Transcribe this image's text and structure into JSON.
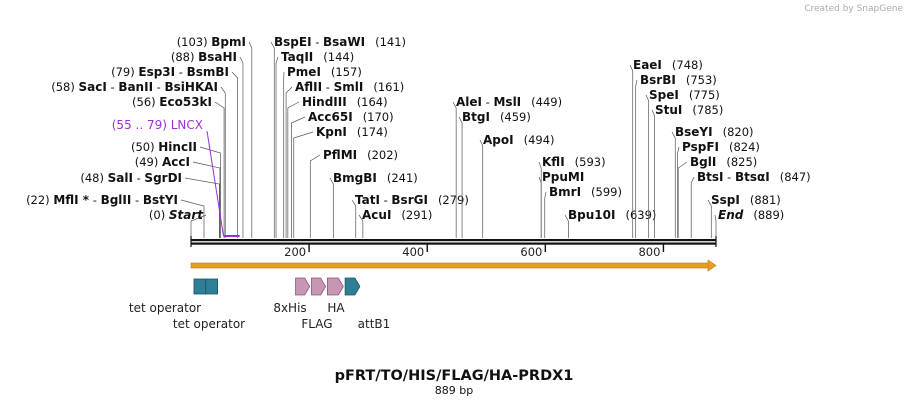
{
  "credit": "Created by SnapGene",
  "title": "pFRT/TO/HIS/FLAG/HA-PRDX1",
  "subtitle": "889 bp",
  "sequence_length": 889,
  "scale_ticks": [
    {
      "value": 200,
      "label": "200"
    },
    {
      "value": 400,
      "label": "400"
    },
    {
      "value": 600,
      "label": "600"
    },
    {
      "value": 800,
      "label": "800"
    }
  ],
  "enzyme_sites": [
    {
      "cut": 0,
      "parts": [
        {
          "t": "(0)",
          "b": false
        },
        {
          "t": "Start",
          "b": true,
          "i": true
        }
      ]
    },
    {
      "cut": 22,
      "parts": [
        {
          "t": "(22)",
          "b": false
        },
        {
          "t": "MflI *",
          "b": true
        },
        {
          "t": " - ",
          "b": false
        },
        {
          "t": "BglII",
          "b": true
        },
        {
          "t": "  - ",
          "b": false
        },
        {
          "t": "BstYI",
          "b": true
        }
      ]
    },
    {
      "cut": 48,
      "parts": [
        {
          "t": "(48)",
          "b": false
        },
        {
          "t": "SalI",
          "b": true
        },
        {
          "t": "  - ",
          "b": false
        },
        {
          "t": "SgrDI",
          "b": true
        }
      ]
    },
    {
      "cut": 49,
      "parts": [
        {
          "t": "(49)",
          "b": false
        },
        {
          "t": "AccI",
          "b": true
        }
      ]
    },
    {
      "cut": 50,
      "parts": [
        {
          "t": "(50)",
          "b": false
        },
        {
          "t": "HincII",
          "b": true
        }
      ]
    },
    {
      "cut": 56,
      "parts": [
        {
          "t": "(56)",
          "b": false
        },
        {
          "t": "Eco53kI",
          "b": true
        }
      ]
    },
    {
      "cut": 58,
      "parts": [
        {
          "t": "(58)",
          "b": false
        },
        {
          "t": "SacI",
          "b": true
        },
        {
          "t": "  - ",
          "b": false
        },
        {
          "t": "BanII",
          "b": true
        },
        {
          "t": "  - ",
          "b": false
        },
        {
          "t": "BsiHKAI",
          "b": true
        }
      ]
    },
    {
      "cut": 79,
      "parts": [
        {
          "t": "(79)",
          "b": false
        },
        {
          "t": "Esp3I",
          "b": true
        },
        {
          "t": "  - ",
          "b": false
        },
        {
          "t": "BsmBI",
          "b": true
        }
      ]
    },
    {
      "cut": 88,
      "parts": [
        {
          "t": "(88)",
          "b": false
        },
        {
          "t": "BsaHI",
          "b": true
        }
      ]
    },
    {
      "cut": 103,
      "parts": [
        {
          "t": "(103)",
          "b": false
        },
        {
          "t": "BpmI",
          "b": true
        }
      ]
    },
    {
      "cut": 141,
      "parts": [
        {
          "t": "BspEI",
          "b": true
        },
        {
          "t": "  - ",
          "b": false
        },
        {
          "t": "BsaWI",
          "b": true
        },
        {
          "t": "(141)",
          "b": false
        }
      ]
    },
    {
      "cut": 144,
      "parts": [
        {
          "t": "TaqII",
          "b": true
        },
        {
          "t": "(144)",
          "b": false
        }
      ]
    },
    {
      "cut": 157,
      "parts": [
        {
          "t": "PmeI",
          "b": true
        },
        {
          "t": "(157)",
          "b": false
        }
      ]
    },
    {
      "cut": 161,
      "parts": [
        {
          "t": "AflII",
          "b": true
        },
        {
          "t": "  - ",
          "b": false
        },
        {
          "t": "SmlI",
          "b": true
        },
        {
          "t": "(161)",
          "b": false
        }
      ]
    },
    {
      "cut": 164,
      "parts": [
        {
          "t": "HindIII",
          "b": true
        },
        {
          "t": "(164)",
          "b": false
        }
      ]
    },
    {
      "cut": 170,
      "parts": [
        {
          "t": "Acc65I",
          "b": true
        },
        {
          "t": "(170)",
          "b": false
        }
      ]
    },
    {
      "cut": 174,
      "parts": [
        {
          "t": "KpnI",
          "b": true
        },
        {
          "t": "(174)",
          "b": false
        }
      ]
    },
    {
      "cut": 202,
      "parts": [
        {
          "t": "PflMI",
          "b": true
        },
        {
          "t": "(202)",
          "b": false
        }
      ]
    },
    {
      "cut": 241,
      "parts": [
        {
          "t": "BmgBI",
          "b": true
        },
        {
          "t": "(241)",
          "b": false
        }
      ]
    },
    {
      "cut": 279,
      "parts": [
        {
          "t": "TatI",
          "b": true
        },
        {
          "t": "  - ",
          "b": false
        },
        {
          "t": "BsrGI",
          "b": true
        },
        {
          "t": "(279)",
          "b": false
        }
      ]
    },
    {
      "cut": 291,
      "parts": [
        {
          "t": "AcuI",
          "b": true
        },
        {
          "t": "(291)",
          "b": false
        }
      ]
    },
    {
      "cut": 449,
      "parts": [
        {
          "t": "AleI",
          "b": true
        },
        {
          "t": "  - ",
          "b": false
        },
        {
          "t": "MslI",
          "b": true
        },
        {
          "t": "(449)",
          "b": false
        }
      ]
    },
    {
      "cut": 459,
      "parts": [
        {
          "t": "BtgI",
          "b": true
        },
        {
          "t": "(459)",
          "b": false
        }
      ]
    },
    {
      "cut": 494,
      "parts": [
        {
          "t": "ApoI",
          "b": true
        },
        {
          "t": "(494)",
          "b": false
        }
      ]
    },
    {
      "cut": 593,
      "parts": [
        {
          "t": "KflI",
          "b": true
        },
        {
          "t": "(593)",
          "b": false
        }
      ]
    },
    {
      "cut": 593,
      "parts": [
        {
          "t": "PpuMI",
          "b": true
        }
      ]
    },
    {
      "cut": 599,
      "parts": [
        {
          "t": "BmrI",
          "b": true
        },
        {
          "t": "(599)",
          "b": false
        }
      ]
    },
    {
      "cut": 639,
      "parts": [
        {
          "t": "Bpu10I",
          "b": true
        },
        {
          "t": "(639)",
          "b": false
        }
      ]
    },
    {
      "cut": 748,
      "parts": [
        {
          "t": "EaeI",
          "b": true
        },
        {
          "t": "(748)",
          "b": false
        }
      ]
    },
    {
      "cut": 753,
      "parts": [
        {
          "t": "BsrBI",
          "b": true
        },
        {
          "t": "(753)",
          "b": false
        }
      ]
    },
    {
      "cut": 775,
      "parts": [
        {
          "t": "SpeI",
          "b": true
        },
        {
          "t": "(775)",
          "b": false
        }
      ]
    },
    {
      "cut": 785,
      "parts": [
        {
          "t": "StuI",
          "b": true
        },
        {
          "t": "(785)",
          "b": false
        }
      ]
    },
    {
      "cut": 820,
      "parts": [
        {
          "t": "BseYI",
          "b": true
        },
        {
          "t": "(820)",
          "b": false
        }
      ]
    },
    {
      "cut": 824,
      "parts": [
        {
          "t": "PspFI",
          "b": true
        },
        {
          "t": "(824)",
          "b": false
        }
      ]
    },
    {
      "cut": 825,
      "parts": [
        {
          "t": "BglI",
          "b": true
        },
        {
          "t": "(825)",
          "b": false
        }
      ]
    },
    {
      "cut": 847,
      "parts": [
        {
          "t": "BtsI",
          "b": true
        },
        {
          "t": "  - ",
          "b": false
        },
        {
          "t": "BtsαI",
          "b": true
        },
        {
          "t": "(847)",
          "b": false
        }
      ]
    },
    {
      "cut": 881,
      "parts": [
        {
          "t": "SspI",
          "b": true
        },
        {
          "t": "(881)",
          "b": false
        }
      ]
    },
    {
      "cut": 889,
      "parts": [
        {
          "t": "End",
          "b": true,
          "i": true
        },
        {
          "t": "(889)",
          "b": false
        }
      ]
    }
  ],
  "primer": {
    "label": "(55 .. 79)  LNCX",
    "start": 55,
    "end": 79,
    "color": "#9b30d9"
  },
  "orf": {
    "start": 0,
    "end": 889,
    "color": "#e8a020"
  },
  "features": [
    {
      "name": "tet operator",
      "start": 5,
      "end": 25,
      "type": "box",
      "color": "#2e7f96"
    },
    {
      "name": "tet operator",
      "start": 25,
      "end": 45,
      "type": "box",
      "color": "#2e7f96"
    },
    {
      "name": "8xHis",
      "start": 177,
      "end": 201,
      "type": "arrow",
      "color": "#c895b3"
    },
    {
      "name": "FLAG",
      "start": 204,
      "end": 228,
      "type": "arrow",
      "color": "#c895b3"
    },
    {
      "name": "HA",
      "start": 231,
      "end": 258,
      "type": "arrow",
      "color": "#c895b3"
    },
    {
      "name": "attB1",
      "start": 261,
      "end": 286,
      "type": "arrow",
      "color": "#2e7f96"
    }
  ]
}
